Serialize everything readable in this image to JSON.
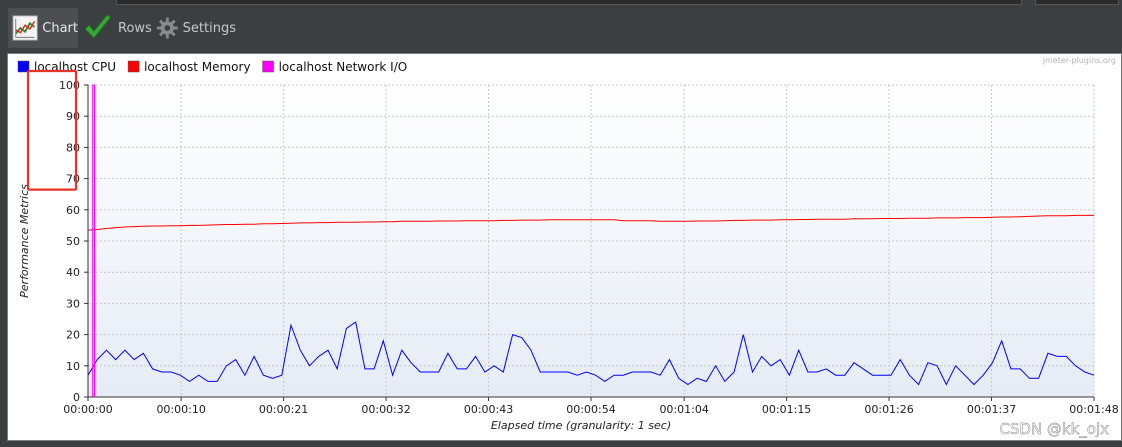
{
  "toolbar": {
    "tabs": [
      {
        "label": "Chart",
        "icon": "chart-icon"
      },
      {
        "label": "Rows",
        "icon": "checkmark-icon"
      },
      {
        "label": "Settings",
        "icon": "gear-icon"
      }
    ]
  },
  "watermark": "jmeter-plugins.org",
  "csdn_watermark": "CSDN @kk_ojx",
  "colors": {
    "cpu": "#0000ff",
    "memory": "#ff0000",
    "network": "#ff00ff",
    "highlight_box": "#e8332a"
  },
  "chart_data": {
    "type": "line",
    "xlabel": "Elapsed time (granularity: 1 sec)",
    "ylabel": "Performance Metrics",
    "ylim": [
      0,
      100
    ],
    "yticks": [
      0,
      10,
      20,
      30,
      40,
      50,
      60,
      70,
      80,
      90,
      100
    ],
    "xlim": [
      0,
      108
    ],
    "x_tick_seconds": [
      0,
      10,
      21,
      32,
      43,
      54,
      64,
      75,
      86,
      97,
      108
    ],
    "x_tick_labels": [
      "00:00:00",
      "00:00:10",
      "00:00:21",
      "00:00:32",
      "00:00:43",
      "00:00:54",
      "00:01:04",
      "00:01:15",
      "00:01:26",
      "00:01:37",
      "00:01:48"
    ],
    "legend_position": "top-left",
    "grid": true,
    "highlight": {
      "from": 70,
      "to": 100
    },
    "series": [
      {
        "name": "localhost CPU",
        "color": "#0000ff",
        "x_start": 0,
        "values": [
          7,
          12,
          15,
          12,
          15,
          12,
          14,
          9,
          8,
          8,
          7,
          5,
          7,
          5,
          5,
          10,
          12,
          7,
          13,
          7,
          6,
          7,
          23,
          15,
          10,
          13,
          15,
          9,
          22,
          24,
          9,
          9,
          18,
          7,
          15,
          11,
          8,
          8,
          8,
          14,
          9,
          9,
          13,
          8,
          10,
          8,
          20,
          19,
          15,
          8,
          8,
          8,
          8,
          7,
          8,
          7,
          5,
          7,
          7,
          8,
          8,
          8,
          7,
          12,
          6,
          4,
          6,
          5,
          10,
          5,
          8,
          20,
          8,
          13,
          10,
          12,
          7,
          15,
          8,
          8,
          9,
          7,
          7,
          11,
          9,
          7,
          7,
          7,
          12,
          7,
          4,
          11,
          10,
          4,
          10,
          7,
          4,
          7,
          11,
          18,
          9,
          9,
          6,
          6,
          14,
          13,
          13,
          10,
          8,
          7
        ]
      },
      {
        "name": "localhost Memory",
        "color": "#ff0000",
        "x_start": 0,
        "values": [
          53.5,
          53.7,
          54,
          54.3,
          54.5,
          54.6,
          54.7,
          54.8,
          54.8,
          54.9,
          54.9,
          55,
          55,
          55.1,
          55.2,
          55.3,
          55.3,
          55.4,
          55.4,
          55.5,
          55.5,
          55.6,
          55.7,
          55.8,
          55.8,
          55.9,
          55.9,
          56,
          56,
          56,
          56.1,
          56.1,
          56.2,
          56.2,
          56.3,
          56.3,
          56.3,
          56.3,
          56.4,
          56.4,
          56.4,
          56.5,
          56.5,
          56.5,
          56.5,
          56.6,
          56.6,
          56.7,
          56.7,
          56.7,
          56.8,
          56.8,
          56.8,
          56.8,
          56.8,
          56.8,
          56.8,
          56.8,
          56.5,
          56.5,
          56.5,
          56.5,
          56.3,
          56.3,
          56.3,
          56.3,
          56.4,
          56.4,
          56.4,
          56.5,
          56.6,
          56.6,
          56.7,
          56.7,
          56.7,
          56.8,
          56.8,
          56.9,
          56.9,
          57,
          57,
          57,
          57,
          57.1,
          57.1,
          57.1,
          57.2,
          57.2,
          57.2,
          57.3,
          57.3,
          57.3,
          57.4,
          57.4,
          57.4,
          57.5,
          57.5,
          57.5,
          57.6,
          57.7,
          57.7,
          57.8,
          57.9,
          58,
          58.1,
          58.1,
          58.1,
          58.2,
          58.2,
          58.2
        ]
      },
      {
        "name": "localhost Network I/O",
        "color": "#ff00ff",
        "x": [
          0,
          0.5,
          0.5,
          0.7,
          0.7,
          0.9,
          0.9
        ],
        "values": [
          0,
          0,
          100,
          100,
          0,
          0,
          0
        ]
      }
    ]
  }
}
